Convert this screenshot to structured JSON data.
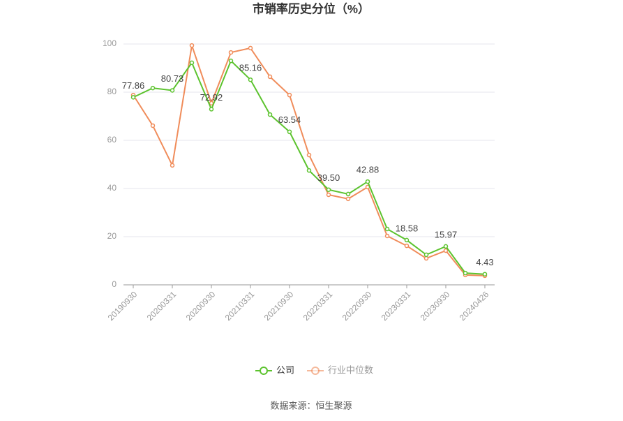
{
  "chart_data": {
    "type": "line",
    "title": "市销率历史分位（%）",
    "categories": [
      "20190930",
      null,
      "20200331",
      null,
      "20200930",
      null,
      "20210331",
      null,
      "20210930",
      null,
      "20220331",
      null,
      "20220930",
      null,
      "20230331",
      null,
      "20230930",
      null,
      "20240426"
    ],
    "series": [
      {
        "name": "公司",
        "color": "#5cc32e",
        "values": [
          77.86,
          81.7,
          80.73,
          92.2,
          72.92,
          93.0,
          85.16,
          70.7,
          63.54,
          47.5,
          39.5,
          37.7,
          42.88,
          23.2,
          18.58,
          12.5,
          15.97,
          4.9,
          4.43
        ],
        "value_labels": [
          "77.86",
          null,
          "80.73",
          null,
          "72.92",
          null,
          "85.16",
          null,
          "63.54",
          null,
          "39.50",
          null,
          "42.88",
          null,
          "18.58",
          null,
          "15.97",
          null,
          "4.43"
        ]
      },
      {
        "name": "行业中位数",
        "color": "#f08c5a",
        "values": [
          78.8,
          66.1,
          49.6,
          99.4,
          75.4,
          96.5,
          98.3,
          86.4,
          78.8,
          53.9,
          37.4,
          35.7,
          40.6,
          20.3,
          16.2,
          11.0,
          14.2,
          4.1,
          3.8
        ]
      }
    ],
    "ylim": [
      0,
      100
    ],
    "yticks": [
      0,
      20,
      40,
      60,
      80,
      100
    ],
    "grid": true,
    "legend": "bottom",
    "source": "数据来源：恒生聚源"
  }
}
